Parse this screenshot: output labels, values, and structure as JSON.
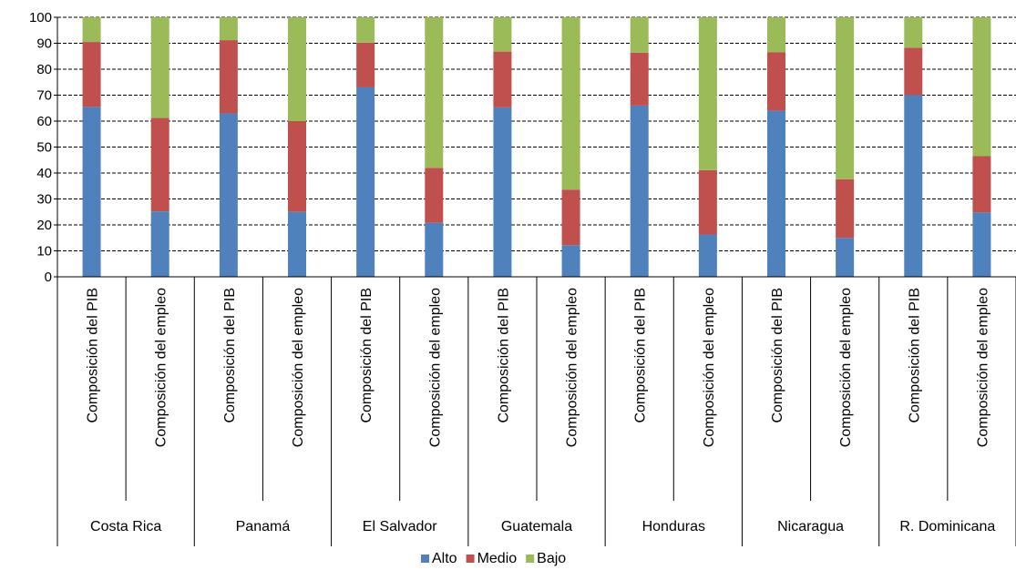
{
  "chart_data": {
    "type": "bar",
    "stacked": true,
    "groups": [
      "Costa Rica",
      "Panamá",
      "El Salvador",
      "Guatemala",
      "Honduras",
      "Nicaragua",
      "R. Dominicana"
    ],
    "subcategories": [
      "Composición del PIB",
      "Composición del empleo"
    ],
    "series": [
      {
        "name": "Alto",
        "color": "#4f81bd",
        "values": [
          [
            65.5,
            25.2
          ],
          [
            63,
            25
          ],
          [
            73,
            20.8
          ],
          [
            65.3,
            12.2
          ],
          [
            66,
            16.3
          ],
          [
            64,
            15
          ],
          [
            70,
            24.8
          ]
        ]
      },
      {
        "name": "Medio",
        "color": "#c0504d",
        "values": [
          [
            25,
            36
          ],
          [
            28.2,
            35
          ],
          [
            17.2,
            21.2
          ],
          [
            21.5,
            21.4
          ],
          [
            20.4,
            24.8
          ],
          [
            22.5,
            22.6
          ],
          [
            18.3,
            21.7
          ]
        ]
      },
      {
        "name": "Bajo",
        "color": "#9bbb59",
        "values": [
          [
            9.5,
            38.8
          ],
          [
            8.8,
            40
          ],
          [
            9.8,
            58
          ],
          [
            13.2,
            66.4
          ],
          [
            13.6,
            58.9
          ],
          [
            13.5,
            62.4
          ],
          [
            11.7,
            53.5
          ]
        ]
      }
    ],
    "ylim": [
      0,
      100
    ],
    "yticks": [
      0,
      10,
      20,
      30,
      40,
      50,
      60,
      70,
      80,
      90,
      100
    ],
    "grid": true,
    "legend_position": "bottom"
  }
}
